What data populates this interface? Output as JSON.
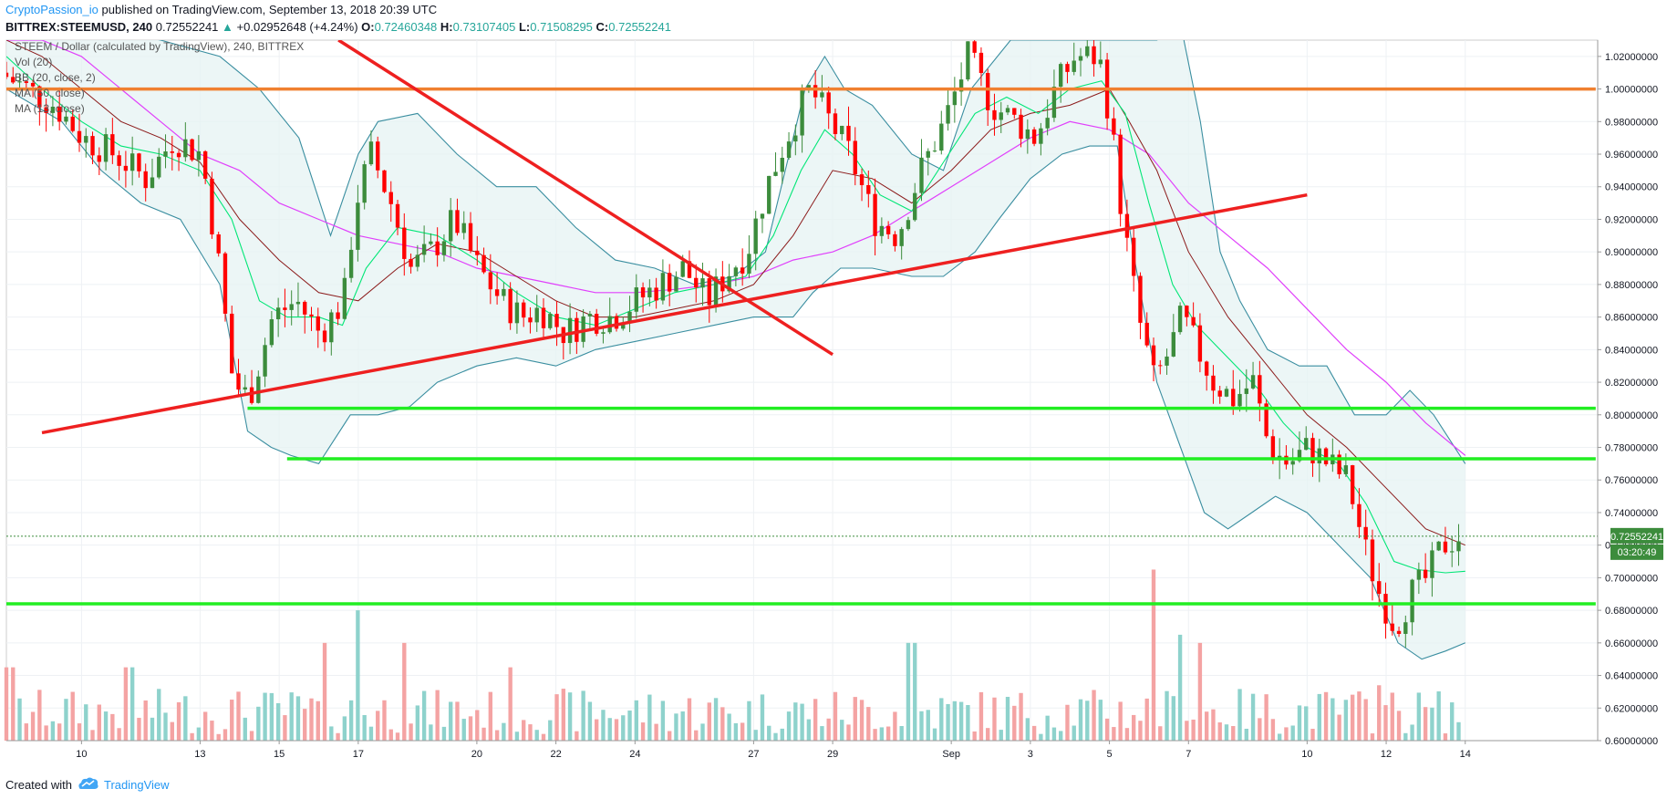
{
  "header": {
    "author": "CryptoPassion_io",
    "published_text": "published on TradingView.com, September 13, 2018 20:39 UTC",
    "symbol": "BITTREX:STEEMUSD, 240",
    "last": "0.72552241",
    "change": "+0.02952648 (+4.24%)",
    "o_label": "O:",
    "o_value": "0.72460348",
    "h_label": "H:",
    "h_value": "0.73107405",
    "l_label": "L:",
    "l_value": "0.71508295",
    "c_label": "C:",
    "c_value": "0.72552241"
  },
  "legend": [
    "STEEM / Dollar (calculated by TradingView), 240, BITTREX",
    "Vol (20)",
    "BB (20, close, 2)",
    "MA (50, close)",
    "MA (13, close)"
  ],
  "price_badge": "0.72552241",
  "time_badge": "03:20:49",
  "footer": {
    "created_with": "Created with",
    "brand": "TradingView"
  },
  "colors": {
    "up": "#26a69a",
    "candle_up": "#3c8c3c",
    "candle_down": "#ff0000",
    "vol_up": "#8ed2cc",
    "vol_down": "#f4a3a3",
    "bb": "#3a8ea0",
    "ma50": "#e040fb",
    "ma13": "#00e676",
    "orange_line": "#f08030",
    "green_line": "#22ee22",
    "red_line": "#ee2020"
  },
  "chart_data": {
    "type": "candlestick",
    "ylim": [
      0.6,
      1.03
    ],
    "y_ticks": [
      "1.02000000",
      "1.00000000",
      "0.98000000",
      "0.96000000",
      "0.94000000",
      "0.92000000",
      "0.90000000",
      "0.88000000",
      "0.86000000",
      "0.84000000",
      "0.82000000",
      "0.80000000",
      "0.78000000",
      "0.76000000",
      "0.74000000",
      "0.72000000",
      "0.70000000",
      "0.68000000",
      "0.66000000",
      "0.64000000",
      "0.62000000",
      "0.60000000"
    ],
    "x_ticks": [
      {
        "label": "10",
        "day": 10
      },
      {
        "label": "13",
        "day": 13
      },
      {
        "label": "15",
        "day": 15
      },
      {
        "label": "17",
        "day": 17
      },
      {
        "label": "20",
        "day": 20
      },
      {
        "label": "22",
        "day": 22
      },
      {
        "label": "24",
        "day": 24
      },
      {
        "label": "27",
        "day": 27
      },
      {
        "label": "29",
        "day": 29
      },
      {
        "label": "Sep",
        "day": 32
      },
      {
        "label": "3",
        "day": 34
      },
      {
        "label": "5",
        "day": 36
      },
      {
        "label": "7",
        "day": 38
      },
      {
        "label": "10",
        "day": 41
      },
      {
        "label": "12",
        "day": 43
      },
      {
        "label": "14",
        "day": 45
      }
    ],
    "close_path": [
      [
        8.1,
        1.01
      ],
      [
        9.5,
        0.99
      ],
      [
        10.2,
        0.97
      ],
      [
        11,
        0.96
      ],
      [
        11.8,
        0.945
      ],
      [
        12.5,
        0.97
      ],
      [
        13.2,
        0.96
      ],
      [
        13.6,
        0.9
      ],
      [
        14,
        0.82
      ],
      [
        14.4,
        0.81
      ],
      [
        15,
        0.86
      ],
      [
        15.6,
        0.87
      ],
      [
        16.2,
        0.85
      ],
      [
        16.8,
        0.87
      ],
      [
        17.1,
        0.93
      ],
      [
        17.5,
        0.96
      ],
      [
        18,
        0.93
      ],
      [
        18.5,
        0.89
      ],
      [
        19,
        0.9
      ],
      [
        19.6,
        0.92
      ],
      [
        20.2,
        0.89
      ],
      [
        20.8,
        0.87
      ],
      [
        21.3,
        0.86
      ],
      [
        21.8,
        0.865
      ],
      [
        22.4,
        0.85
      ],
      [
        23,
        0.86
      ],
      [
        23.6,
        0.86
      ],
      [
        24.2,
        0.87
      ],
      [
        24.8,
        0.88
      ],
      [
        25.4,
        0.89
      ],
      [
        26,
        0.87
      ],
      [
        26.6,
        0.89
      ],
      [
        27,
        0.9
      ],
      [
        27.5,
        0.94
      ],
      [
        28,
        0.97
      ],
      [
        28.6,
        1.0
      ],
      [
        29.1,
        0.98
      ],
      [
        29.6,
        0.96
      ],
      [
        30.2,
        0.92
      ],
      [
        30.8,
        0.91
      ],
      [
        31.4,
        0.95
      ],
      [
        32,
        0.98
      ],
      [
        32.6,
        1.02
      ],
      [
        33.2,
        0.99
      ],
      [
        33.8,
        0.98
      ],
      [
        34.3,
        0.97
      ],
      [
        34.8,
        1.0
      ],
      [
        35.3,
        1.02
      ],
      [
        35.9,
        1.02
      ],
      [
        36.2,
        0.98
      ],
      [
        36.5,
        0.92
      ],
      [
        36.9,
        0.86
      ],
      [
        37.3,
        0.82
      ],
      [
        37.7,
        0.84
      ],
      [
        38,
        0.86
      ],
      [
        38.4,
        0.84
      ],
      [
        38.8,
        0.82
      ],
      [
        39.3,
        0.81
      ],
      [
        39.8,
        0.82
      ],
      [
        40.2,
        0.78
      ],
      [
        40.7,
        0.77
      ],
      [
        41.2,
        0.78
      ],
      [
        41.7,
        0.77
      ],
      [
        42.2,
        0.76
      ],
      [
        42.6,
        0.72
      ],
      [
        43,
        0.69
      ],
      [
        43.4,
        0.67
      ],
      [
        43.8,
        0.69
      ],
      [
        44.2,
        0.7
      ],
      [
        44.6,
        0.72
      ],
      [
        45,
        0.7255
      ]
    ],
    "ma13_path": [
      [
        8.1,
        1.02
      ],
      [
        9,
        1.0
      ],
      [
        10,
        0.98
      ],
      [
        11,
        0.965
      ],
      [
        12,
        0.96
      ],
      [
        13,
        0.95
      ],
      [
        13.8,
        0.92
      ],
      [
        14.5,
        0.87
      ],
      [
        15.2,
        0.86
      ],
      [
        16,
        0.86
      ],
      [
        16.6,
        0.855
      ],
      [
        17.2,
        0.89
      ],
      [
        18,
        0.915
      ],
      [
        19,
        0.91
      ],
      [
        20,
        0.895
      ],
      [
        21,
        0.875
      ],
      [
        22,
        0.86
      ],
      [
        23,
        0.855
      ],
      [
        24,
        0.865
      ],
      [
        25,
        0.875
      ],
      [
        26,
        0.88
      ],
      [
        26.8,
        0.885
      ],
      [
        27.5,
        0.91
      ],
      [
        28.2,
        0.95
      ],
      [
        28.8,
        0.975
      ],
      [
        29.5,
        0.96
      ],
      [
        30.2,
        0.935
      ],
      [
        31,
        0.925
      ],
      [
        31.8,
        0.955
      ],
      [
        32.6,
        0.985
      ],
      [
        33.4,
        0.995
      ],
      [
        34.2,
        0.985
      ],
      [
        35,
        1.0
      ],
      [
        35.8,
        1.005
      ],
      [
        36.4,
        0.985
      ],
      [
        37,
        0.93
      ],
      [
        37.6,
        0.88
      ],
      [
        38.2,
        0.855
      ],
      [
        39,
        0.835
      ],
      [
        39.8,
        0.815
      ],
      [
        40.4,
        0.795
      ],
      [
        41,
        0.78
      ],
      [
        41.8,
        0.77
      ],
      [
        42.5,
        0.745
      ],
      [
        43.2,
        0.71
      ],
      [
        43.8,
        0.705
      ],
      [
        44.5,
        0.703
      ],
      [
        45,
        0.704
      ]
    ],
    "ma50_path": [
      [
        8.1,
        1.03
      ],
      [
        9,
        1.03
      ],
      [
        10,
        1.02
      ],
      [
        11,
        1.0
      ],
      [
        12,
        0.98
      ],
      [
        13,
        0.96
      ],
      [
        14,
        0.95
      ],
      [
        15,
        0.93
      ],
      [
        16,
        0.92
      ],
      [
        17,
        0.91
      ],
      [
        18,
        0.905
      ],
      [
        19,
        0.9
      ],
      [
        20,
        0.89
      ],
      [
        21,
        0.885
      ],
      [
        22,
        0.88
      ],
      [
        23,
        0.875
      ],
      [
        24,
        0.875
      ],
      [
        25,
        0.877
      ],
      [
        26,
        0.88
      ],
      [
        27,
        0.885
      ],
      [
        28,
        0.895
      ],
      [
        29,
        0.9
      ],
      [
        30,
        0.91
      ],
      [
        31,
        0.925
      ],
      [
        32,
        0.94
      ],
      [
        33,
        0.955
      ],
      [
        34,
        0.97
      ],
      [
        35,
        0.98
      ],
      [
        36,
        0.975
      ],
      [
        37,
        0.96
      ],
      [
        38,
        0.93
      ],
      [
        39,
        0.91
      ],
      [
        40,
        0.89
      ],
      [
        41,
        0.865
      ],
      [
        42,
        0.84
      ],
      [
        43,
        0.82
      ],
      [
        44,
        0.795
      ],
      [
        45,
        0.775
      ]
    ],
    "ma_dark_path": [
      [
        8.1,
        1.03
      ],
      [
        9,
        1.02
      ],
      [
        10,
        1.0
      ],
      [
        11,
        0.98
      ],
      [
        12,
        0.97
      ],
      [
        13,
        0.955
      ],
      [
        14,
        0.92
      ],
      [
        15,
        0.895
      ],
      [
        16,
        0.875
      ],
      [
        17,
        0.87
      ],
      [
        18,
        0.89
      ],
      [
        19,
        0.905
      ],
      [
        20,
        0.9
      ],
      [
        21,
        0.885
      ],
      [
        22,
        0.87
      ],
      [
        23,
        0.86
      ],
      [
        24,
        0.86
      ],
      [
        25,
        0.865
      ],
      [
        26,
        0.87
      ],
      [
        27,
        0.88
      ],
      [
        28,
        0.91
      ],
      [
        29,
        0.95
      ],
      [
        30,
        0.945
      ],
      [
        31,
        0.93
      ],
      [
        32,
        0.95
      ],
      [
        33,
        0.975
      ],
      [
        34,
        0.985
      ],
      [
        35,
        0.99
      ],
      [
        36,
        1.0
      ],
      [
        36.5,
        0.98
      ],
      [
        37.2,
        0.95
      ],
      [
        38,
        0.9
      ],
      [
        39,
        0.86
      ],
      [
        40,
        0.83
      ],
      [
        41,
        0.8
      ],
      [
        42,
        0.78
      ],
      [
        43,
        0.755
      ],
      [
        44,
        0.73
      ],
      [
        45,
        0.72
      ]
    ],
    "bb_upper_path": [
      [
        8.1,
        1.03
      ],
      [
        10,
        1.04
      ],
      [
        12,
        1.03
      ],
      [
        13.5,
        1.02
      ],
      [
        14.5,
        1.0
      ],
      [
        15.5,
        0.97
      ],
      [
        16.3,
        0.91
      ],
      [
        17,
        0.96
      ],
      [
        17.5,
        0.98
      ],
      [
        18.5,
        0.985
      ],
      [
        19.5,
        0.96
      ],
      [
        20.5,
        0.94
      ],
      [
        21.5,
        0.94
      ],
      [
        22.5,
        0.915
      ],
      [
        23.5,
        0.895
      ],
      [
        24.5,
        0.89
      ],
      [
        25.5,
        0.88
      ],
      [
        26.5,
        0.885
      ],
      [
        27.3,
        0.9
      ],
      [
        27.8,
        0.95
      ],
      [
        28.3,
        1.0
      ],
      [
        28.8,
        1.02
      ],
      [
        29.3,
        1.0
      ],
      [
        30,
        0.99
      ],
      [
        31,
        0.96
      ],
      [
        31.8,
        0.95
      ],
      [
        32.5,
        1.0
      ],
      [
        33.5,
        1.03
      ],
      [
        34.5,
        1.03
      ],
      [
        35.5,
        1.03
      ],
      [
        36.5,
        1.03
      ],
      [
        37.2,
        1.03
      ],
      [
        37.8,
        1.04
      ],
      [
        38.3,
        0.98
      ],
      [
        38.8,
        0.9
      ],
      [
        39.3,
        0.87
      ],
      [
        40,
        0.84
      ],
      [
        40.8,
        0.83
      ],
      [
        41.5,
        0.83
      ],
      [
        42.2,
        0.8
      ],
      [
        43,
        0.8
      ],
      [
        43.6,
        0.815
      ],
      [
        44.2,
        0.8
      ],
      [
        45,
        0.77
      ]
    ],
    "bb_lower_path": [
      [
        8.1,
        1.0
      ],
      [
        9.5,
        0.98
      ],
      [
        10.5,
        0.95
      ],
      [
        11.5,
        0.93
      ],
      [
        12.5,
        0.92
      ],
      [
        13.5,
        0.88
      ],
      [
        14.2,
        0.79
      ],
      [
        14.8,
        0.78
      ],
      [
        15.3,
        0.775
      ],
      [
        16,
        0.77
      ],
      [
        16.8,
        0.8
      ],
      [
        17.5,
        0.8
      ],
      [
        18.3,
        0.805
      ],
      [
        19,
        0.82
      ],
      [
        20,
        0.83
      ],
      [
        21,
        0.835
      ],
      [
        22,
        0.83
      ],
      [
        23,
        0.84
      ],
      [
        24,
        0.845
      ],
      [
        25,
        0.85
      ],
      [
        26,
        0.855
      ],
      [
        27,
        0.86
      ],
      [
        28,
        0.86
      ],
      [
        28.5,
        0.875
      ],
      [
        29.2,
        0.89
      ],
      [
        30,
        0.89
      ],
      [
        31,
        0.885
      ],
      [
        31.8,
        0.885
      ],
      [
        32.6,
        0.9
      ],
      [
        33.2,
        0.92
      ],
      [
        34,
        0.945
      ],
      [
        34.8,
        0.96
      ],
      [
        35.5,
        0.965
      ],
      [
        36.2,
        0.965
      ],
      [
        36.6,
        0.9
      ],
      [
        37.2,
        0.82
      ],
      [
        37.8,
        0.78
      ],
      [
        38.4,
        0.74
      ],
      [
        39,
        0.73
      ],
      [
        39.6,
        0.74
      ],
      [
        40.2,
        0.75
      ],
      [
        41,
        0.74
      ],
      [
        41.8,
        0.72
      ],
      [
        42.6,
        0.7
      ],
      [
        43.3,
        0.66
      ],
      [
        43.9,
        0.65
      ],
      [
        44.5,
        0.655
      ],
      [
        45,
        0.66
      ]
    ],
    "horizontal_lines": [
      {
        "color": "orange",
        "y": 1.0,
        "x1": 8.1,
        "x2": 48.3
      },
      {
        "color": "green",
        "y": 0.804,
        "x1": 14.2,
        "x2": 48.3
      },
      {
        "color": "green",
        "y": 0.773,
        "x1": 15.2,
        "x2": 48.3
      },
      {
        "color": "green",
        "y": 0.684,
        "x1": 8.1,
        "x2": 48.3
      }
    ],
    "trend_lines": [
      {
        "x1": 9.0,
        "y1": 0.789,
        "x2": 41.0,
        "y2": 0.935
      },
      {
        "x1": 16.5,
        "y1": 1.03,
        "x2": 29.0,
        "y2": 0.837
      }
    ],
    "current_price": 0.7255,
    "volume_max": 0.692
  }
}
